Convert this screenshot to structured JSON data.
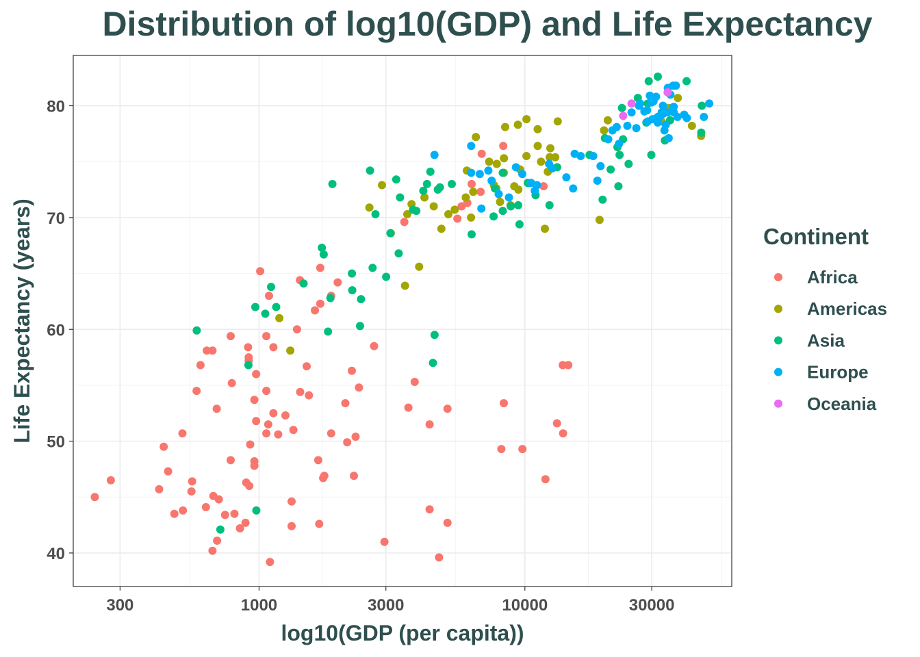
{
  "chart_data": {
    "type": "scatter",
    "title": "Distribution of log10(GDP) and Life Expectancy",
    "xlabel": "log10(GDP (per capita))",
    "ylabel": "Life Expectancy (years)",
    "x_scale": "log10",
    "xlim": [
      200,
      60000
    ],
    "ylim": [
      37,
      84.5
    ],
    "x_ticks": [
      300,
      1000,
      3000,
      10000,
      30000
    ],
    "x_tick_labels": [
      "300",
      "1000",
      "3000",
      "10000",
      "30000"
    ],
    "y_ticks": [
      40,
      50,
      60,
      70,
      80
    ],
    "y_tick_labels": [
      "40",
      "50",
      "60",
      "70",
      "80"
    ],
    "grid": true,
    "legend": {
      "title": "Continent",
      "position": "right",
      "entries": [
        {
          "name": "Africa",
          "color": "#F8766D"
        },
        {
          "name": "Americas",
          "color": "#A3A500"
        },
        {
          "name": "Asia",
          "color": "#00BF7D"
        },
        {
          "name": "Europe",
          "color": "#00B0F6"
        },
        {
          "name": "Oceania",
          "color": "#E76BF3"
        }
      ]
    },
    "series": [
      {
        "name": "Africa",
        "color": "#F8766D",
        "points": [
          [
            241,
            45
          ],
          [
            277,
            46.5
          ],
          [
            421,
            45.7
          ],
          [
            438,
            49.5
          ],
          [
            455,
            47.3
          ],
          [
            480,
            43.5
          ],
          [
            515,
            50.7
          ],
          [
            517,
            43.8
          ],
          [
            560,
            46.4
          ],
          [
            557,
            45.5
          ],
          [
            582,
            54.5
          ],
          [
            602,
            56.8
          ],
          [
            631,
            44.1
          ],
          [
            636,
            58.1
          ],
          [
            668,
            58.1
          ],
          [
            668,
            40.2
          ],
          [
            673,
            45.1
          ],
          [
            693,
            52.9
          ],
          [
            695,
            41.1
          ],
          [
            706,
            44.8
          ],
          [
            745,
            43.4
          ],
          [
            782,
            59.4
          ],
          [
            790,
            55.2
          ],
          [
            782,
            48.3
          ],
          [
            808,
            43.5
          ],
          [
            848,
            42.2
          ],
          [
            895,
            46.3
          ],
          [
            889,
            42.7
          ],
          [
            909,
            58.4
          ],
          [
            914,
            57.5
          ],
          [
            914,
            57.2
          ],
          [
            919,
            46.0
          ],
          [
            926,
            49.7
          ],
          [
            960,
            48.2
          ],
          [
            960,
            47.8
          ],
          [
            975,
            56.0
          ],
          [
            960,
            53.7
          ],
          [
            975,
            51.8
          ],
          [
            1010,
            65.2
          ],
          [
            1065,
            59.4
          ],
          [
            1065,
            54.5
          ],
          [
            1065,
            50.7
          ],
          [
            1083,
            51.5
          ],
          [
            1090,
            63.0
          ],
          [
            1099,
            39.2
          ],
          [
            1132,
            52.5
          ],
          [
            1132,
            58.4
          ],
          [
            1180,
            50.6
          ],
          [
            1257,
            52.3
          ],
          [
            1326,
            44.6
          ],
          [
            1326,
            42.4
          ],
          [
            1346,
            51.0
          ],
          [
            1389,
            60.0
          ],
          [
            1425,
            64.4
          ],
          [
            1428,
            54.4
          ],
          [
            1540,
            54.1
          ],
          [
            1510,
            56.7
          ],
          [
            1623,
            61.7
          ],
          [
            1670,
            48.3
          ],
          [
            1684,
            42.6
          ],
          [
            1700,
            62.3
          ],
          [
            1700,
            65.5
          ],
          [
            1742,
            46.7
          ],
          [
            1760,
            46.9
          ],
          [
            1868,
            63.0
          ],
          [
            1868,
            50.7
          ],
          [
            1976,
            64.2
          ],
          [
            2112,
            53.4
          ],
          [
            2146,
            49.9
          ],
          [
            2234,
            56.3
          ],
          [
            2274,
            46.9
          ],
          [
            2308,
            50.4
          ],
          [
            2376,
            54.8
          ],
          [
            2708,
            58.5
          ],
          [
            2962,
            41.0
          ],
          [
            3645,
            53.0
          ],
          [
            3850,
            55.3
          ],
          [
            4380,
            51.5
          ],
          [
            4380,
            43.9
          ],
          [
            4755,
            39.6
          ],
          [
            5115,
            42.7
          ],
          [
            5115,
            52.9
          ],
          [
            5572,
            69.9
          ],
          [
            5780,
            71.0
          ],
          [
            6075,
            71.3
          ],
          [
            6305,
            73.0
          ],
          [
            6815,
            72.3
          ],
          [
            6880,
            75.7
          ],
          [
            8155,
            49.3
          ],
          [
            8330,
            53.4
          ],
          [
            8290,
            76.4
          ],
          [
            9790,
            49.3
          ],
          [
            11755,
            72.8
          ],
          [
            11945,
            46.6
          ],
          [
            13205,
            51.6
          ],
          [
            13880,
            56.8
          ],
          [
            13920,
            50.7
          ],
          [
            14565,
            56.8
          ],
          [
            3520,
            69.6
          ]
        ]
      },
      {
        "name": "Americas",
        "color": "#A3A500",
        "points": [
          [
            1192,
            61.0
          ],
          [
            1311,
            58.1
          ],
          [
            2600,
            70.9
          ],
          [
            2900,
            72.9
          ],
          [
            3130,
            68.6
          ],
          [
            3610,
            70.3
          ],
          [
            3745,
            71.2
          ],
          [
            3540,
            63.9
          ],
          [
            4000,
            65.6
          ],
          [
            4190,
            71.8
          ],
          [
            4540,
            71.0
          ],
          [
            4850,
            69.0
          ],
          [
            5155,
            70.3
          ],
          [
            5445,
            70.7
          ],
          [
            5990,
            71.8
          ],
          [
            6050,
            74.2
          ],
          [
            6270,
            70.0
          ],
          [
            6390,
            72.3
          ],
          [
            6540,
            77.2
          ],
          [
            7340,
            75.0
          ],
          [
            7645,
            72.9
          ],
          [
            7840,
            74.8
          ],
          [
            7815,
            72.6
          ],
          [
            8065,
            71.4
          ],
          [
            8330,
            74.0
          ],
          [
            8340,
            75.3
          ],
          [
            8430,
            78.1
          ],
          [
            8830,
            71.1
          ],
          [
            9120,
            72.8
          ],
          [
            9415,
            78.3
          ],
          [
            9450,
            72.5
          ],
          [
            9595,
            74.3
          ],
          [
            10135,
            75.5
          ],
          [
            10135,
            78.8
          ],
          [
            11175,
            76.4
          ],
          [
            11175,
            77.9
          ],
          [
            11505,
            75.0
          ],
          [
            11890,
            69.0
          ],
          [
            12195,
            74.1
          ],
          [
            12465,
            76.2
          ],
          [
            12395,
            75.4
          ],
          [
            13010,
            75.4
          ],
          [
            13290,
            78.6
          ],
          [
            19100,
            69.8
          ],
          [
            19850,
            77.8
          ],
          [
            20500,
            78.7
          ],
          [
            32650,
            78.6
          ],
          [
            34835,
            79.8
          ],
          [
            37595,
            80.7
          ],
          [
            42500,
            78.2
          ],
          [
            46000,
            77.3
          ]
        ]
      },
      {
        "name": "Asia",
        "color": "#00BF7D",
        "points": [
          [
            583,
            59.9
          ],
          [
            715,
            42.1
          ],
          [
            912,
            56.8
          ],
          [
            968,
            62.0
          ],
          [
            977,
            43.8
          ],
          [
            1055,
            61.4
          ],
          [
            1110,
            63.8
          ],
          [
            1160,
            62.0
          ],
          [
            1471,
            64.1
          ],
          [
            1723,
            67.3
          ],
          [
            1751,
            66.7
          ],
          [
            1817,
            59.8
          ],
          [
            1855,
            62.8
          ],
          [
            1888,
            73.0
          ],
          [
            2235,
            65.0
          ],
          [
            2242,
            63.5
          ],
          [
            2418,
            62.7
          ],
          [
            2398,
            60.3
          ],
          [
            2615,
            74.2
          ],
          [
            2674,
            65.5
          ],
          [
            2741,
            70.3
          ],
          [
            3007,
            64.7
          ],
          [
            3120,
            68.6
          ],
          [
            3280,
            73.4
          ],
          [
            3390,
            71.8
          ],
          [
            3350,
            66.8
          ],
          [
            3795,
            70.7
          ],
          [
            3905,
            70.6
          ],
          [
            4148,
            72.4
          ],
          [
            4283,
            73.0
          ],
          [
            4410,
            74.1
          ],
          [
            4510,
            57.0
          ],
          [
            4575,
            59.5
          ],
          [
            4705,
            72.5
          ],
          [
            4790,
            72.7
          ],
          [
            5310,
            73.0
          ],
          [
            6305,
            68.5
          ],
          [
            7625,
            70.1
          ],
          [
            7715,
            72.6
          ],
          [
            8255,
            70.6
          ],
          [
            8255,
            74.0
          ],
          [
            8850,
            71.0
          ],
          [
            9435,
            71.1
          ],
          [
            9540,
            69.4
          ],
          [
            10255,
            73.1
          ],
          [
            10970,
            72.0
          ],
          [
            12375,
            71.1
          ],
          [
            13225,
            74.5
          ],
          [
            17500,
            75.6
          ],
          [
            19600,
            71.6
          ],
          [
            21015,
            74.3
          ],
          [
            22285,
            76.3
          ],
          [
            22480,
            72.8
          ],
          [
            22700,
            75.6
          ],
          [
            23185,
            79.8
          ],
          [
            24555,
            74.8
          ],
          [
            28650,
            78.5
          ],
          [
            29225,
            82.2
          ],
          [
            29000,
            80.2
          ],
          [
            29900,
            75.6
          ],
          [
            31625,
            82.6
          ],
          [
            33625,
            76.9
          ],
          [
            35175,
            78.7
          ],
          [
            40580,
            82.2
          ],
          [
            46295,
            80.0
          ],
          [
            46050,
            77.6
          ],
          [
            23400,
            77.0
          ],
          [
            20000,
            77.1
          ],
          [
            26600,
            80.7
          ]
        ]
      },
      {
        "name": "Europe",
        "color": "#00B0F6",
        "points": [
          [
            4570,
            75.6
          ],
          [
            6280,
            76.4
          ],
          [
            6280,
            74.0
          ],
          [
            6765,
            73.9
          ],
          [
            6860,
            70.8
          ],
          [
            7285,
            74.2
          ],
          [
            7495,
            73.3
          ],
          [
            7970,
            72.1
          ],
          [
            8710,
            71.8
          ],
          [
            9250,
            74.5
          ],
          [
            9780,
            73.9
          ],
          [
            10550,
            73.1
          ],
          [
            10900,
            72.4
          ],
          [
            11100,
            72.9
          ],
          [
            12330,
            74.8
          ],
          [
            12690,
            74.4
          ],
          [
            14320,
            73.6
          ],
          [
            15390,
            75.7
          ],
          [
            15190,
            72.6
          ],
          [
            16210,
            75.5
          ],
          [
            18075,
            75.5
          ],
          [
            18740,
            73.3
          ],
          [
            19250,
            74.6
          ],
          [
            21350,
            77.8
          ],
          [
            20590,
            77.0
          ],
          [
            22140,
            78.1
          ],
          [
            22595,
            76.6
          ],
          [
            24290,
            78.2
          ],
          [
            25190,
            79.4
          ],
          [
            26260,
            78.0
          ],
          [
            26870,
            80.0
          ],
          [
            27120,
            80.2
          ],
          [
            28150,
            79.5
          ],
          [
            28825,
            79.6
          ],
          [
            29000,
            78.6
          ],
          [
            29500,
            80.9
          ],
          [
            29950,
            80.3
          ],
          [
            30215,
            78.8
          ],
          [
            30470,
            80.4
          ],
          [
            31150,
            80.8
          ],
          [
            31580,
            78.5
          ],
          [
            31600,
            79.0
          ],
          [
            32170,
            79.0
          ],
          [
            32695,
            79.4
          ],
          [
            33070,
            80.0
          ],
          [
            33200,
            79.3
          ],
          [
            33880,
            78.3
          ],
          [
            34435,
            79.4
          ],
          [
            34480,
            81.6
          ],
          [
            34750,
            77.1
          ],
          [
            35275,
            81.0
          ],
          [
            36300,
            79.9
          ],
          [
            36320,
            79.4
          ],
          [
            36125,
            81.8
          ],
          [
            36985,
            81.8
          ],
          [
            37500,
            79.0
          ],
          [
            39725,
            79.2
          ],
          [
            40675,
            78.9
          ],
          [
            49357,
            80.2
          ],
          [
            47143,
            79.0
          ],
          [
            33500,
            77.8
          ]
        ]
      },
      {
        "name": "Oceania",
        "color": "#E76BF3",
        "points": [
          [
            23424,
            79.1
          ],
          [
            25186,
            80.2
          ],
          [
            34435,
            81.2
          ]
        ]
      }
    ]
  }
}
